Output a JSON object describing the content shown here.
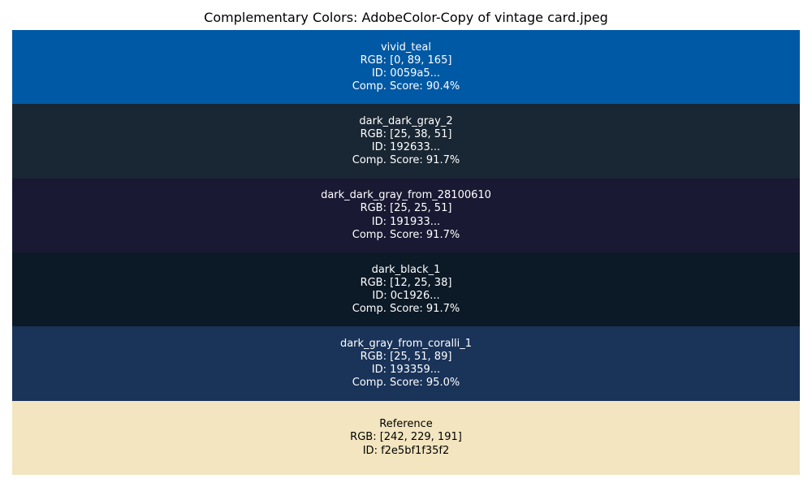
{
  "chart_data": {
    "type": "table",
    "title": "Complementary Colors: AdobeColor-Copy of vintage card.jpeg",
    "swatches": [
      {
        "name": "vivid_teal",
        "rgb_label": "RGB: [0, 89, 165]",
        "id_label": "ID: 0059a5...",
        "score_label": "Comp. Score: 90.4%",
        "rgb": [
          0,
          89,
          165
        ],
        "score": 90.4,
        "color": "#0059a5",
        "text_color": "#ffffff"
      },
      {
        "name": "dark_dark_gray_2",
        "rgb_label": "RGB: [25, 38, 51]",
        "id_label": "ID: 192633...",
        "score_label": "Comp. Score: 91.7%",
        "rgb": [
          25,
          38,
          51
        ],
        "score": 91.7,
        "color": "#192633",
        "text_color": "#ffffff"
      },
      {
        "name": "dark_dark_gray_from_28100610",
        "rgb_label": "RGB: [25, 25, 51]",
        "id_label": "ID: 191933...",
        "score_label": "Comp. Score: 91.7%",
        "rgb": [
          25,
          25,
          51
        ],
        "score": 91.7,
        "color": "#191933",
        "text_color": "#ffffff"
      },
      {
        "name": "dark_black_1",
        "rgb_label": "RGB: [12, 25, 38]",
        "id_label": "ID: 0c1926...",
        "score_label": "Comp. Score: 91.7%",
        "rgb": [
          12,
          25,
          38
        ],
        "score": 91.7,
        "color": "#0c1926",
        "text_color": "#ffffff"
      },
      {
        "name": "dark_gray_from_coralli_1",
        "rgb_label": "RGB: [25, 51, 89]",
        "id_label": "ID: 193359...",
        "score_label": "Comp. Score: 95.0%",
        "rgb": [
          25,
          51,
          89
        ],
        "score": 95.0,
        "color": "#193359",
        "text_color": "#ffffff"
      },
      {
        "name": "Reference",
        "rgb_label": "RGB: [242, 229, 191]",
        "id_label": "ID: f2e5bf1f35f2",
        "score_label": "",
        "rgb": [
          242,
          229,
          191
        ],
        "color": "#f2e5bf",
        "text_color": "#000000"
      }
    ]
  }
}
